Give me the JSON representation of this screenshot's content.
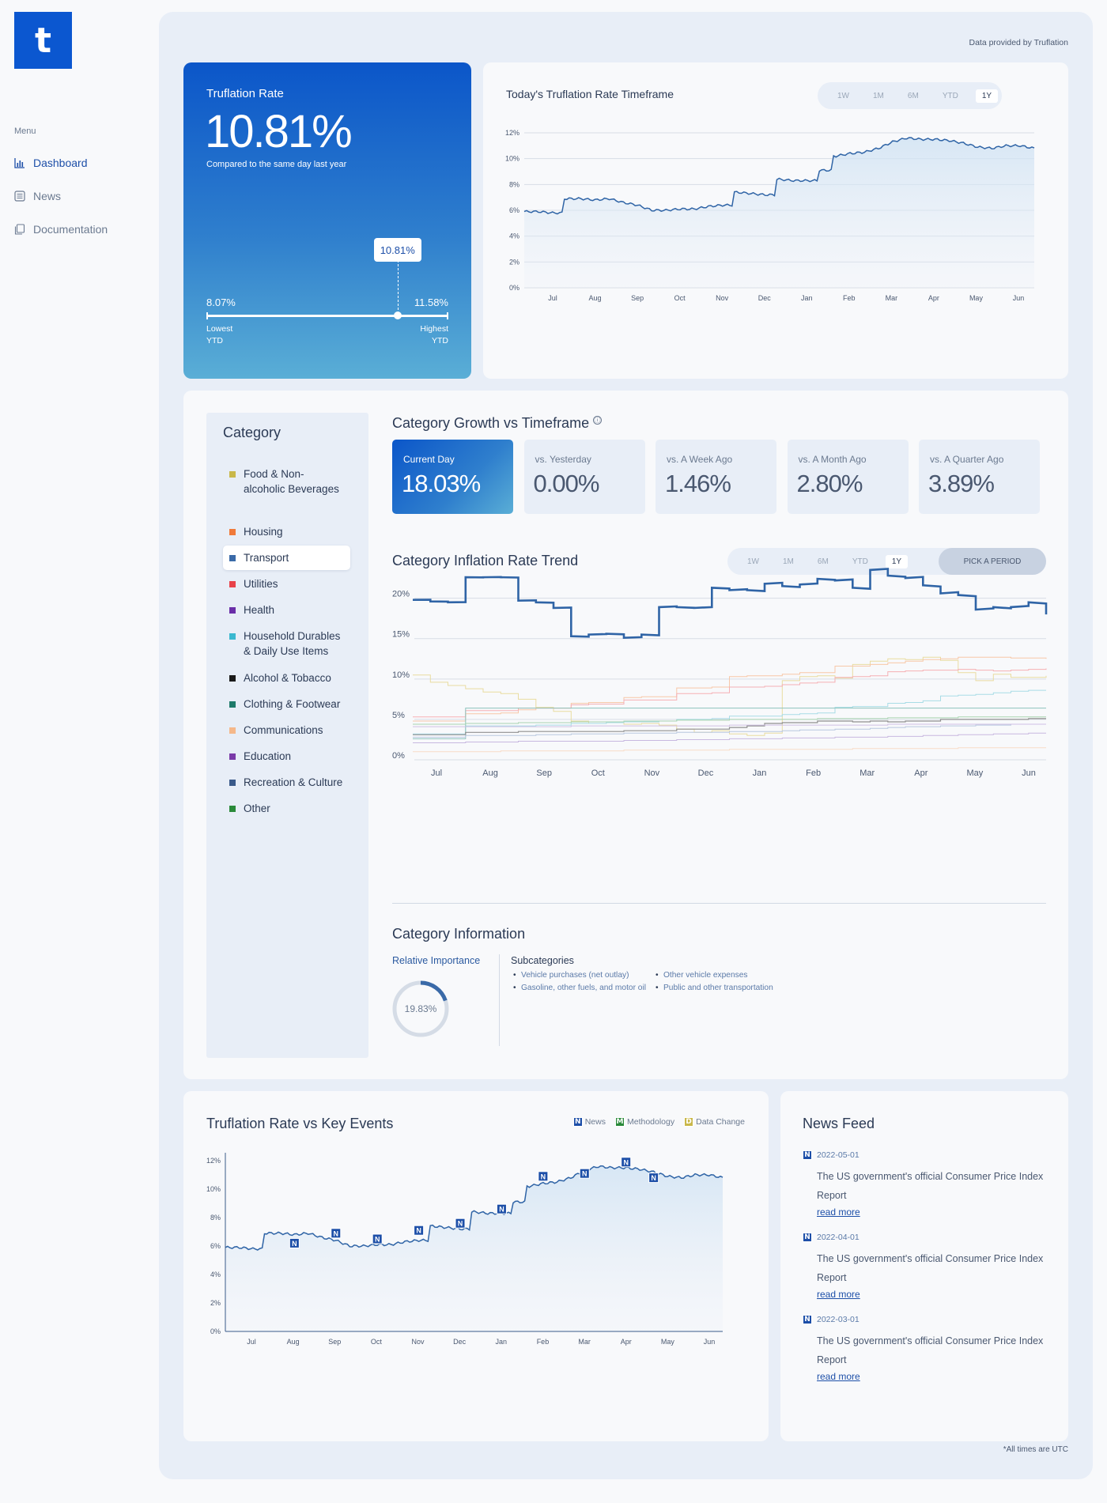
{
  "sidebar": {
    "logo": "t",
    "menu_label": "Menu",
    "items": [
      {
        "label": "Dashboard",
        "icon": "bar-chart-icon",
        "active": true
      },
      {
        "label": "News",
        "icon": "newspaper-icon",
        "active": false
      },
      {
        "label": "Documentation",
        "icon": "documents-icon",
        "active": false
      }
    ]
  },
  "header": {
    "data_credit": "Data provided by Truflation"
  },
  "rate_card": {
    "title": "Truflation Rate",
    "value": "10.81%",
    "subtitle": "Compared to the same day last year",
    "current_label": "10.81%",
    "low_value": "8.07%",
    "low_label_1": "Lowest",
    "low_label_2": "YTD",
    "high_value": "11.58%",
    "high_label_1": "Highest",
    "high_label_2": "YTD",
    "position_fraction": 0.79
  },
  "timeframe_chart": {
    "title": "Today's Truflation Rate Timeframe",
    "periods": [
      "1W",
      "1M",
      "6M",
      "YTD",
      "1Y"
    ],
    "selected_period": "1Y"
  },
  "category": {
    "heading": "Category",
    "selected": "Transport",
    "items": [
      {
        "label": "Food & Non-alcoholic Beverages",
        "color": "#c9b84a"
      },
      {
        "label": "Housing",
        "color": "#f07a3a"
      },
      {
        "label": "Transport",
        "color": "#3a6aa8"
      },
      {
        "label": "Utilities",
        "color": "#e8424a"
      },
      {
        "label": "Health",
        "color": "#6a2ea8"
      },
      {
        "label": "Household Durables & Daily Use Items",
        "color": "#3ab8d0"
      },
      {
        "label": "Alcohol & Tobacco",
        "color": "#1a1a1a"
      },
      {
        "label": "Clothing & Footwear",
        "color": "#1e7a6a"
      },
      {
        "label": "Communications",
        "color": "#f5b88a"
      },
      {
        "label": "Education",
        "color": "#7a3aa8"
      },
      {
        "label": "Recreation & Culture",
        "color": "#3a5a8a"
      },
      {
        "label": "Other",
        "color": "#2a8a3a"
      }
    ]
  },
  "growth": {
    "title": "Category Growth vs Timeframe",
    "info_icon": "ⓘ",
    "stats": [
      {
        "label": "Current Day",
        "value": "18.03%",
        "active": true
      },
      {
        "label": "vs. Yesterday",
        "value": "0.00%",
        "active": false
      },
      {
        "label": "vs. A Week Ago",
        "value": "1.46%",
        "active": false
      },
      {
        "label": "vs. A Month Ago",
        "value": "2.80%",
        "active": false
      },
      {
        "label": "vs. A Quarter Ago",
        "value": "3.89%",
        "active": false
      }
    ]
  },
  "trend": {
    "title": "Category Inflation Rate Trend",
    "periods": [
      "1W",
      "1M",
      "6M",
      "YTD",
      "1Y"
    ],
    "selected_period": "1Y",
    "pick_label": "PICK A PERIOD"
  },
  "category_info": {
    "title": "Category Information",
    "importance_label": "Relative Importance",
    "importance_value": "19.83%",
    "importance_fraction": 0.1983,
    "subcategories_label": "Subcategories",
    "subcategories": [
      "Vehicle purchases (net outlay)",
      "Other vehicle expenses",
      "Gasoline, other fuels, and motor oil",
      "Public and other transportation"
    ]
  },
  "events": {
    "title": "Truflation Rate vs Key Events",
    "legend": [
      {
        "letter": "N",
        "label": "News",
        "color": "#1d4fa8"
      },
      {
        "letter": "M",
        "label": "Methodology",
        "color": "#2a8a3a"
      },
      {
        "letter": "D",
        "label": "Data Change",
        "color": "#c9b84a"
      }
    ],
    "marker_letter": "N"
  },
  "news": {
    "title": "News Feed",
    "items": [
      {
        "badge": "N",
        "date": "2022-05-01",
        "text": "The US government's official Consumer Price Index Report",
        "link": "read more"
      },
      {
        "badge": "N",
        "date": "2022-04-01",
        "text": "The US government's official Consumer Price Index Report",
        "link": "read more"
      },
      {
        "badge": "N",
        "date": "2022-03-01",
        "text": "The US government's official Consumer Price Index Report",
        "link": "read more"
      }
    ]
  },
  "footer": {
    "note": "*All times are UTC"
  },
  "chart_data": [
    {
      "type": "area",
      "name": "timeframe",
      "x": [
        "Jul",
        "Jul",
        "Jul",
        "Jul",
        "Aug",
        "Aug",
        "Aug",
        "Sep",
        "Sep",
        "Sep",
        "Oct",
        "Oct",
        "Oct",
        "Nov",
        "Nov",
        "Nov",
        "Dec",
        "Dec",
        "Dec",
        "Jan",
        "Jan",
        "Jan",
        "Feb",
        "Feb",
        "Feb",
        "Mar",
        "Mar",
        "Mar",
        "Apr",
        "Apr",
        "Apr",
        "May",
        "May",
        "May",
        "Jun",
        "Jun",
        "Jun"
      ],
      "x_ticks": [
        "Jul",
        "Aug",
        "Sep",
        "Oct",
        "Nov",
        "Dec",
        "Jan",
        "Feb",
        "Mar",
        "Apr",
        "May",
        "Jun"
      ],
      "values": [
        5.9,
        5.9,
        5.8,
        6.9,
        6.9,
        6.8,
        6.9,
        6.6,
        6.4,
        6.0,
        6.0,
        6.1,
        6.1,
        6.3,
        6.4,
        7.4,
        7.3,
        7.2,
        8.4,
        8.3,
        8.3,
        9.1,
        10.2,
        10.4,
        10.5,
        10.8,
        11.3,
        11.6,
        11.5,
        11.5,
        11.4,
        11.2,
        10.9,
        10.8,
        11.0,
        11.0,
        10.8
      ],
      "y_ticks": [
        "0%",
        "2%",
        "4%",
        "6%",
        "8%",
        "10%",
        "12%"
      ],
      "ylim": [
        0,
        12
      ]
    },
    {
      "type": "line",
      "name": "category_trend",
      "x_ticks": [
        "Jul",
        "Aug",
        "Sep",
        "Oct",
        "Nov",
        "Dec",
        "Jan",
        "Feb",
        "Mar",
        "Apr",
        "May",
        "Jun"
      ],
      "y_ticks": [
        "0%",
        "5%",
        "10%",
        "15%",
        "20%"
      ],
      "ylim": [
        0,
        24
      ],
      "series": [
        {
          "name": "Transport",
          "color": "#2f64a6",
          "width": 2.6,
          "values": [
            19.8,
            19.6,
            19.5,
            22.6,
            22.6,
            22.6,
            19.7,
            19.5,
            18.8,
            15.3,
            15.5,
            15.6,
            15.1,
            15.5,
            18.9,
            18.9,
            18.8,
            21.3,
            21.0,
            21.0,
            21.8,
            21.5,
            21.7,
            22.4,
            22.2,
            21.3,
            23.5,
            22.8,
            22.5,
            21.6,
            20.6,
            20.4,
            18.6,
            18.9,
            18.9,
            19.5,
            18.0
          ]
        },
        {
          "name": "Food & Non-alcoholic Beverages",
          "color": "#e9dca0",
          "width": 1,
          "values": [
            10.5,
            9.6,
            9.2,
            8.8,
            8.4,
            8.2,
            7.5,
            6.5,
            6.0,
            4.8,
            4.5,
            4.6,
            4.4,
            4.5,
            4.3,
            3.8,
            3.4,
            3.6,
            3.2,
            3.0,
            3.3,
            9.8,
            10.3,
            10.4,
            10.1,
            11.8,
            12.2,
            12.5,
            12.4,
            12.7,
            12.3,
            10.8,
            9.8,
            10.6,
            10.2,
            10.2,
            10.4
          ]
        },
        {
          "name": "Housing",
          "color": "#f7c8a8",
          "width": 1,
          "values": [
            4.8,
            4.8,
            4.8,
            5.7,
            5.7,
            5.8,
            6.2,
            6.4,
            6.4,
            7.0,
            7.1,
            7.1,
            7.7,
            7.8,
            7.8,
            8.9,
            8.9,
            9.0,
            10.3,
            10.4,
            10.4,
            10.6,
            10.8,
            10.8,
            11.6,
            11.6,
            11.8,
            12.0,
            12.2,
            12.4,
            12.5,
            12.7,
            12.7,
            12.7,
            12.6,
            12.6,
            12.5
          ]
        },
        {
          "name": "Utilities",
          "color": "#f5b0b4",
          "width": 1,
          "values": [
            5.3,
            5.3,
            5.3,
            6.1,
            6.1,
            6.1,
            6.4,
            6.4,
            6.4,
            6.8,
            6.9,
            6.9,
            7.4,
            7.4,
            7.4,
            8.2,
            8.2,
            8.3,
            9.0,
            9.0,
            9.1,
            9.3,
            9.5,
            9.6,
            10.2,
            10.3,
            10.4,
            10.9,
            11.0,
            11.1,
            11.1,
            11.2,
            11.1,
            11.0,
            11.1,
            11.2,
            11.3
          ]
        },
        {
          "name": "Household Durables & Daily Use Items",
          "color": "#a8dce6",
          "width": 1,
          "values": [
            3.2,
            3.2,
            3.2,
            4.2,
            4.2,
            4.2,
            4.2,
            4.3,
            4.3,
            4.5,
            4.5,
            4.6,
            4.7,
            4.7,
            4.8,
            5.0,
            5.0,
            5.1,
            5.4,
            5.4,
            5.4,
            5.6,
            5.7,
            5.8,
            6.5,
            6.6,
            6.6,
            7.0,
            7.1,
            7.3,
            7.9,
            8.0,
            8.1,
            8.3,
            8.5,
            8.6,
            8.6
          ]
        },
        {
          "name": "Clothing & Footwear",
          "color": "#8cc4bc",
          "width": 1,
          "values": [
            2.6,
            2.6,
            2.6,
            6.4,
            6.4,
            6.4,
            6.4,
            6.4,
            6.4,
            6.4,
            6.4,
            6.4,
            6.4,
            6.4,
            6.4,
            6.4,
            6.4,
            6.4,
            6.4,
            6.4,
            6.4,
            6.4,
            6.4,
            6.4,
            6.4,
            6.4,
            6.4,
            6.4,
            6.4,
            6.4,
            6.4,
            6.4,
            6.4,
            6.4,
            6.4,
            6.4,
            6.4
          ]
        },
        {
          "name": "Alcohol & Tobacco",
          "color": "#909090",
          "width": 1.2,
          "values": [
            3.1,
            3.1,
            3.1,
            3.4,
            3.4,
            3.4,
            3.5,
            3.5,
            3.5,
            3.5,
            3.5,
            3.5,
            3.6,
            3.6,
            3.6,
            3.8,
            3.8,
            3.8,
            4.0,
            4.2,
            4.5,
            4.6,
            4.6,
            4.8,
            4.8,
            4.7,
            4.8,
            4.7,
            4.8,
            4.8,
            5.0,
            5.0,
            5.0,
            5.0,
            5.0,
            5.1,
            5.1
          ]
        },
        {
          "name": "Recreation & Culture",
          "color": "#b8c8e0",
          "width": 1,
          "values": [
            2.8,
            2.8,
            2.8,
            3.0,
            3.0,
            3.0,
            3.0,
            3.1,
            3.1,
            3.2,
            3.2,
            3.2,
            3.3,
            3.3,
            3.3,
            3.4,
            3.4,
            3.4,
            3.5,
            3.5,
            3.5,
            3.6,
            3.7,
            3.7,
            3.8,
            3.8,
            3.9,
            4.0,
            4.1,
            4.1,
            4.2,
            4.2,
            4.3,
            4.3,
            4.4,
            4.4,
            4.4
          ]
        },
        {
          "name": "Health",
          "color": "#c8b8e0",
          "width": 1,
          "values": [
            2.1,
            2.1,
            2.1,
            2.2,
            2.2,
            2.2,
            2.3,
            2.3,
            2.3,
            2.3,
            2.3,
            2.3,
            2.4,
            2.4,
            2.4,
            2.5,
            2.5,
            2.5,
            2.6,
            2.6,
            2.6,
            2.7,
            2.7,
            2.7,
            2.8,
            2.8,
            2.8,
            2.9,
            2.9,
            3.0,
            3.0,
            3.1,
            3.1,
            3.2,
            3.2,
            3.3,
            3.3
          ]
        },
        {
          "name": "Communications",
          "color": "#f8dcc8",
          "width": 1,
          "values": [
            1.0,
            1.0,
            1.0,
            1.0,
            1.0,
            1.1,
            1.1,
            1.1,
            1.1,
            1.1,
            1.1,
            1.1,
            1.2,
            1.2,
            1.2,
            1.2,
            1.2,
            1.2,
            1.3,
            1.3,
            1.3,
            1.3,
            1.3,
            1.3,
            1.3,
            1.4,
            1.4,
            1.4,
            1.4,
            1.4,
            1.4,
            1.5,
            1.5,
            1.5,
            1.5,
            1.5,
            1.5
          ]
        },
        {
          "name": "Education",
          "color": "#d0c0e4",
          "width": 1,
          "values": [
            4.1,
            4.1,
            4.1,
            4.1,
            4.1,
            4.1,
            4.1,
            4.1,
            4.1,
            4.2,
            4.2,
            4.2,
            4.2,
            4.2,
            4.2,
            4.2,
            4.2,
            4.2,
            4.3,
            4.3,
            4.3,
            4.3,
            4.3,
            4.3,
            4.3,
            4.3,
            4.3,
            4.4,
            4.4,
            4.4,
            4.4,
            4.4,
            4.4,
            4.4,
            4.4,
            4.4,
            4.4
          ]
        },
        {
          "name": "Other",
          "color": "#a8d4b0",
          "width": 1,
          "values": [
            4.4,
            4.4,
            4.4,
            4.5,
            4.5,
            4.5,
            4.6,
            4.6,
            4.6,
            4.7,
            4.7,
            4.7,
            4.8,
            4.8,
            4.8,
            4.9,
            4.9,
            4.9,
            5.0,
            5.0,
            5.0,
            5.0,
            5.0,
            5.1,
            5.1,
            5.1,
            5.1,
            5.2,
            5.2,
            5.2,
            5.2,
            5.3,
            5.3,
            5.3,
            5.3,
            5.3,
            5.3
          ]
        }
      ]
    },
    {
      "type": "area",
      "name": "key_events",
      "x_ticks": [
        "Jul",
        "Aug",
        "Sep",
        "Oct",
        "Nov",
        "Dec",
        "Jan",
        "Feb",
        "Mar",
        "Apr",
        "May",
        "Jun"
      ],
      "values": [
        5.9,
        5.9,
        5.8,
        6.9,
        6.9,
        6.8,
        6.9,
        6.6,
        6.4,
        6.0,
        6.0,
        6.1,
        6.1,
        6.3,
        6.4,
        7.4,
        7.3,
        7.2,
        8.4,
        8.3,
        8.3,
        9.1,
        10.2,
        10.4,
        10.5,
        10.8,
        11.3,
        11.6,
        11.5,
        11.5,
        11.4,
        11.2,
        10.9,
        10.8,
        11.0,
        11.0,
        10.8
      ],
      "y_ticks": [
        "0%",
        "2%",
        "4%",
        "6%",
        "8%",
        "10%",
        "12%"
      ],
      "ylim": [
        0,
        12
      ],
      "markers": [
        {
          "letter": "N",
          "index": 5,
          "value": 6.2
        },
        {
          "letter": "N",
          "index": 8,
          "value": 6.9
        },
        {
          "letter": "N",
          "index": 11,
          "value": 6.5
        },
        {
          "letter": "N",
          "index": 14,
          "value": 7.1
        },
        {
          "letter": "N",
          "index": 17,
          "value": 7.6
        },
        {
          "letter": "N",
          "index": 20,
          "value": 8.6
        },
        {
          "letter": "N",
          "index": 23,
          "value": 10.9
        },
        {
          "letter": "N",
          "index": 26,
          "value": 11.1
        },
        {
          "letter": "N",
          "index": 29,
          "value": 11.9
        },
        {
          "letter": "N",
          "index": 31,
          "value": 10.8
        }
      ]
    }
  ]
}
